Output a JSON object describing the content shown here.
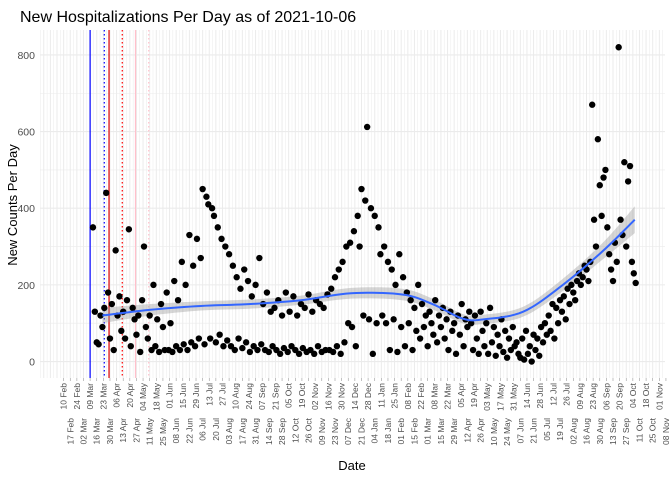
{
  "chart_data": {
    "type": "scatter",
    "title": "New Hospitalizations Per Day as of 2021-10-06",
    "xlabel": "Date",
    "ylabel": "New Counts Per Day",
    "x_origin_date": "2020-02-10",
    "xlim_days": [
      -25,
      636
    ],
    "ylim": [
      -43,
      865
    ],
    "y_ticks": [
      0,
      200,
      400,
      600,
      800
    ],
    "y_tick_labels": [
      "0",
      "200",
      "400",
      "600",
      "800"
    ],
    "grid": true,
    "x_tick_labels": [
      "10 Feb",
      "17 Feb",
      "24 Feb",
      "02 Mar",
      "09 Mar",
      "16 Mar",
      "23 Mar",
      "30 Mar",
      "06 Apr",
      "13 Apr",
      "20 Apr",
      "27 Apr",
      "04 May",
      "11 May",
      "18 May",
      "25 May",
      "01 Jun",
      "08 Jun",
      "15 Jun",
      "22 Jun",
      "29 Jun",
      "06 Jul",
      "13 Jul",
      "20 Jul",
      "27 Jul",
      "03 Aug",
      "10 Aug",
      "17 Aug",
      "24 Aug",
      "31 Aug",
      "07 Sep",
      "14 Sep",
      "21 Sep",
      "28 Sep",
      "05 Oct",
      "12 Oct",
      "19 Oct",
      "26 Oct",
      "02 Nov",
      "09 Nov",
      "16 Nov",
      "23 Nov",
      "30 Nov",
      "07 Dec",
      "14 Dec",
      "21 Dec",
      "28 Dec",
      "04 Jan",
      "11 Jan",
      "18 Jan",
      "25 Jan",
      "01 Feb",
      "08 Feb",
      "15 Feb",
      "22 Feb",
      "01 Mar",
      "08 Mar",
      "15 Mar",
      "22 Mar",
      "29 Mar",
      "05 Apr",
      "12 Apr",
      "19 Apr",
      "26 Apr",
      "03 May",
      "10 May",
      "17 May",
      "24 May",
      "31 May",
      "07 Jun",
      "14 Jun",
      "21 Jun",
      "28 Jun",
      "05 Jul",
      "12 Jul",
      "19 Jul",
      "26 Jul",
      "02 Aug",
      "09 Aug",
      "16 Aug",
      "23 Aug",
      "30 Aug",
      "06 Sep",
      "13 Sep",
      "20 Sep",
      "27 Sep",
      "04 Oct",
      "11 Oct",
      "18 Oct",
      "25 Oct",
      "01 Nov",
      "08 Nov"
    ],
    "x_tick_step_days": 7,
    "points": {
      "first_date": "2020-03-12",
      "step_days": 2,
      "values": [
        350,
        130,
        50,
        45,
        120,
        90,
        140,
        440,
        180,
        60,
        150,
        30,
        290,
        120,
        170,
        80,
        130,
        60,
        160,
        345,
        40,
        140,
        110,
        70,
        120,
        25,
        160,
        300,
        90,
        60,
        120,
        30,
        200,
        40,
        110,
        25,
        150,
        90,
        30,
        180,
        30,
        100,
        25,
        210,
        40,
        160,
        30,
        260,
        45,
        200,
        30,
        330,
        50,
        250,
        40,
        320,
        60,
        270,
        450,
        45,
        430,
        410,
        60,
        400,
        380,
        50,
        350,
        70,
        320,
        40,
        300,
        55,
        280,
        40,
        250,
        30,
        220,
        60,
        190,
        35,
        240,
        50,
        210,
        25,
        170,
        40,
        200,
        30,
        270,
        45,
        150,
        30,
        180,
        25,
        130,
        40,
        140,
        30,
        160,
        20,
        120,
        35,
        180,
        25,
        130,
        40,
        170,
        30,
        120,
        20,
        150,
        35,
        140,
        25,
        175,
        30,
        130,
        20,
        160,
        40,
        150,
        25,
        140,
        30,
        175,
        30,
        190,
        25,
        220,
        40,
        240,
        20,
        260,
        50,
        300,
        100,
        310,
        90,
        340,
        40,
        380,
        300,
        450,
        120,
        420,
        612,
        110,
        400,
        20,
        380,
        100,
        350,
        280,
        120,
        300,
        100,
        260,
        30,
        240,
        110,
        200,
        25,
        280,
        90,
        220,
        40,
        180,
        100,
        160,
        30,
        140,
        80,
        200,
        60,
        150,
        90,
        120,
        40,
        130,
        100,
        70,
        160,
        50,
        120,
        90,
        140,
        60,
        110,
        30,
        130,
        80,
        100,
        20,
        120,
        70,
        150,
        40,
        110,
        90,
        130,
        100,
        30,
        120,
        60,
        20,
        130,
        80,
        40,
        100,
        20,
        140,
        50,
        90,
        15,
        70,
        40,
        110,
        25,
        80,
        10,
        60,
        30,
        90,
        40,
        50,
        20,
        10,
        60,
        5,
        80,
        20,
        40,
        0,
        70,
        30,
        60,
        15,
        90,
        50,
        100,
        70,
        120,
        80,
        150,
        60,
        140,
        100,
        160,
        130,
        170,
        110,
        190,
        150,
        200,
        180,
        160,
        210,
        230,
        200,
        220,
        250,
        240,
        210,
        260,
        670,
        370,
        300,
        580,
        460,
        380,
        480,
        500,
        350,
        280,
        240,
        210,
        310,
        260,
        820,
        370,
        330,
        520,
        300,
        470,
        510,
        260,
        230,
        205
      ],
      "color": "#000000"
    },
    "smooth": {
      "method": "loess",
      "dates": [
        "2020-03-22",
        "2020-05-12",
        "2020-07-04",
        "2020-08-26",
        "2020-10-18",
        "2020-12-10",
        "2021-02-02",
        "2021-03-06",
        "2021-04-07",
        "2021-04-29",
        "2021-06-10",
        "2021-07-22",
        "2021-09-03",
        "2021-10-06"
      ],
      "values": [
        120,
        135,
        145,
        150,
        160,
        178,
        175,
        150,
        112,
        110,
        130,
        200,
        290,
        370
      ],
      "ci_half_width": [
        20,
        15,
        12,
        12,
        12,
        14,
        15,
        14,
        12,
        12,
        13,
        16,
        22,
        35
      ],
      "color": "#3366ff",
      "ci_color": "#999999"
    },
    "vlines": [
      {
        "date": "2020-03-09",
        "color": "#0000ff",
        "style": "solid"
      },
      {
        "date": "2020-03-24",
        "color": "#0000ff",
        "style": "dotted"
      },
      {
        "date": "2020-03-29",
        "color": "#dd0000",
        "style": "solid"
      },
      {
        "date": "2020-04-12",
        "color": "#ff0000",
        "style": "dotted"
      },
      {
        "date": "2020-04-26",
        "color": "#ffc0cb",
        "style": "solid"
      },
      {
        "date": "2020-05-10",
        "color": "#ffc0cb",
        "style": "dotted"
      }
    ]
  }
}
